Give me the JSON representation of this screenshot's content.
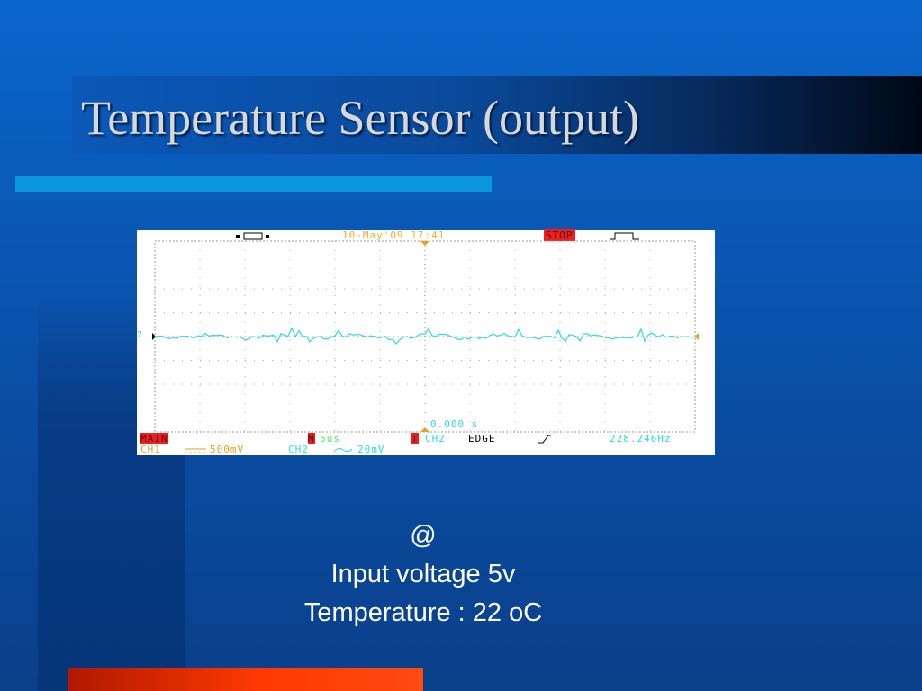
{
  "slide": {
    "title": "Temperature Sensor (output)",
    "caption": [
      "@",
      "Input voltage 5v",
      "Temperature : 22 oC"
    ]
  },
  "scope": {
    "datetime": "10-May'09 17:41",
    "status": "STOP",
    "trigger_time": "0.000 s",
    "main_label": "MAIN",
    "timebase_marker": "M",
    "timebase": "5us",
    "trigger_marker": "T",
    "trigger_source": "CH2",
    "trigger_type": "EDGE",
    "frequency": "228.246Hz",
    "ch1_label": "CH1",
    "ch1_coupling": "DC",
    "ch1_scale": "500mV",
    "ch2_label": "CH2",
    "ch2_coupling": "AC",
    "ch2_scale": "20mV",
    "channel_marker": "2",
    "colors": {
      "ch1": "#e8a020",
      "ch2": "#30d8e0",
      "alert": "#e82020",
      "timebase": "#60e060"
    }
  }
}
